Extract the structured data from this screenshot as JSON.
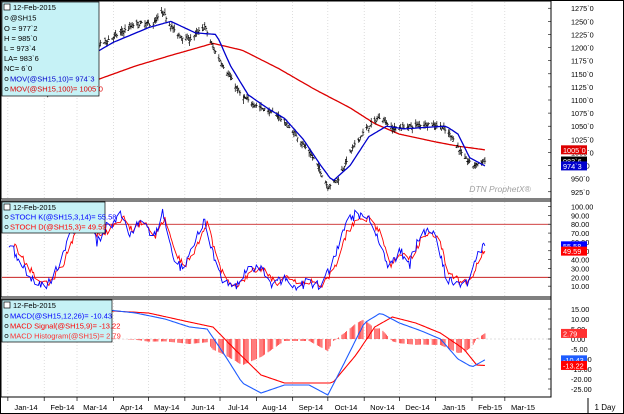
{
  "chart_data": [
    {
      "type": "ohlc",
      "panel": "price",
      "legend": {
        "date": "12-Feb-2015",
        "symbol": "@SH15",
        "open": "O = 977`2",
        "high": "H = 985`0",
        "low": "L = 973`4",
        "last": "LA= 983`6",
        "nc": "NC= 6`0",
        "ma10": "MOV(@SH15,10)= 974`3",
        "ma100": "MOV(@SH15,100)= 1005`0"
      },
      "y_ticks": [
        "1275`0",
        "1250`0",
        "1225`0",
        "1200`0",
        "1175`0",
        "1150`0",
        "1125`0",
        "1100`0",
        "1075`0",
        "1050`0",
        "1025`0",
        "1000`0",
        "975`0",
        "950`0",
        "925`0"
      ],
      "ylim": [
        915,
        1285
      ],
      "value_boxes": {
        "ma100": "1005`0",
        "last": "983`6",
        "ma10": "974`3"
      },
      "watermark": "DTN ProphetX®",
      "x_range": [
        "2013-12-27",
        "2015-03-31"
      ],
      "close_anchors": [
        [
          "2014-01-02",
          1140
        ],
        [
          "2014-01-20",
          1125
        ],
        [
          "2014-02-05",
          1112
        ],
        [
          "2014-02-20",
          1155
        ],
        [
          "2014-03-05",
          1185
        ],
        [
          "2014-03-20",
          1205
        ],
        [
          "2014-04-05",
          1225
        ],
        [
          "2014-04-20",
          1245
        ],
        [
          "2014-05-05",
          1245
        ],
        [
          "2014-05-13",
          1268
        ],
        [
          "2014-05-25",
          1225
        ],
        [
          "2014-06-05",
          1215
        ],
        [
          "2014-06-18",
          1240
        ],
        [
          "2014-06-25",
          1200
        ],
        [
          "2014-07-05",
          1160
        ],
        [
          "2014-07-20",
          1105
        ],
        [
          "2014-08-05",
          1085
        ],
        [
          "2014-08-20",
          1070
        ],
        [
          "2014-09-05",
          1030
        ],
        [
          "2014-09-20",
          985
        ],
        [
          "2014-10-01",
          935
        ],
        [
          "2014-10-10",
          950
        ],
        [
          "2014-10-20",
          1000
        ],
        [
          "2014-11-01",
          1040
        ],
        [
          "2014-11-15",
          1070
        ],
        [
          "2014-11-25",
          1045
        ],
        [
          "2014-12-10",
          1050
        ],
        [
          "2014-12-25",
          1055
        ],
        [
          "2015-01-05",
          1050
        ],
        [
          "2015-01-15",
          1030
        ],
        [
          "2015-01-25",
          990
        ],
        [
          "2015-02-02",
          975
        ],
        [
          "2015-02-12",
          983.75
        ]
      ],
      "ma10_anchors": [
        [
          "2014-01-15",
          1135
        ],
        [
          "2014-02-10",
          1115
        ],
        [
          "2014-03-01",
          1170
        ],
        [
          "2014-04-01",
          1210
        ],
        [
          "2014-05-01",
          1238
        ],
        [
          "2014-05-20",
          1250
        ],
        [
          "2014-06-10",
          1228
        ],
        [
          "2014-06-28",
          1225
        ],
        [
          "2014-07-10",
          1165
        ],
        [
          "2014-07-25",
          1110
        ],
        [
          "2014-08-10",
          1085
        ],
        [
          "2014-08-25",
          1065
        ],
        [
          "2014-09-10",
          1025
        ],
        [
          "2014-09-25",
          975
        ],
        [
          "2014-10-05",
          945
        ],
        [
          "2014-10-20",
          975
        ],
        [
          "2014-11-05",
          1030
        ],
        [
          "2014-11-20",
          1050
        ],
        [
          "2014-12-05",
          1045
        ],
        [
          "2014-12-25",
          1048
        ],
        [
          "2015-01-10",
          1050
        ],
        [
          "2015-01-20",
          1035
        ],
        [
          "2015-01-30",
          990
        ],
        [
          "2015-02-12",
          974.375
        ]
      ],
      "ma100_anchors": [
        [
          "2014-02-20",
          1118
        ],
        [
          "2014-03-20",
          1140
        ],
        [
          "2014-04-20",
          1165
        ],
        [
          "2014-05-20",
          1185
        ],
        [
          "2014-06-25",
          1208
        ],
        [
          "2014-07-20",
          1195
        ],
        [
          "2014-08-20",
          1160
        ],
        [
          "2014-09-20",
          1120
        ],
        [
          "2014-10-20",
          1085
        ],
        [
          "2014-11-10",
          1055
        ],
        [
          "2014-12-01",
          1035
        ],
        [
          "2015-01-01",
          1020
        ],
        [
          "2015-01-20",
          1012
        ],
        [
          "2015-02-12",
          1005
        ]
      ]
    },
    {
      "type": "line",
      "panel": "stochastic",
      "legend": {
        "date": "12-Feb-2015",
        "k": "STOCH K(@SH15,3,14)= 55.58",
        "d": "STOCH D(@SH15,3)= 49.59"
      },
      "y_ticks": [
        "100.00",
        "90.00",
        "80.00",
        "70.00",
        "60.00",
        "50.00",
        "40.00",
        "30.00",
        "20.00",
        "10.00"
      ],
      "ylim": [
        0,
        104
      ],
      "reference_lines": [
        80,
        20
      ],
      "value_boxes": {
        "k": "55.58",
        "d": "49.59"
      },
      "k_anchors": [
        [
          "2014-01-02",
          60
        ],
        [
          "2014-01-12",
          35
        ],
        [
          "2014-01-22",
          18
        ],
        [
          "2014-02-03",
          8
        ],
        [
          "2014-02-15",
          40
        ],
        [
          "2014-02-28",
          82
        ],
        [
          "2014-03-08",
          90
        ],
        [
          "2014-03-18",
          60
        ],
        [
          "2014-03-25",
          75
        ],
        [
          "2014-04-08",
          90
        ],
        [
          "2014-04-15",
          70
        ],
        [
          "2014-04-25",
          88
        ],
        [
          "2014-05-05",
          62
        ],
        [
          "2014-05-13",
          92
        ],
        [
          "2014-05-22",
          40
        ],
        [
          "2014-05-30",
          30
        ],
        [
          "2014-06-08",
          55
        ],
        [
          "2014-06-18",
          88
        ],
        [
          "2014-06-28",
          28
        ],
        [
          "2014-07-05",
          12
        ],
        [
          "2014-07-15",
          8
        ],
        [
          "2014-07-25",
          30
        ],
        [
          "2014-08-05",
          32
        ],
        [
          "2014-08-15",
          10
        ],
        [
          "2014-08-25",
          20
        ],
        [
          "2014-09-05",
          10
        ],
        [
          "2014-09-15",
          15
        ],
        [
          "2014-09-25",
          8
        ],
        [
          "2014-10-05",
          35
        ],
        [
          "2014-10-15",
          78
        ],
        [
          "2014-10-25",
          92
        ],
        [
          "2014-11-05",
          88
        ],
        [
          "2014-11-15",
          60
        ],
        [
          "2014-11-22",
          28
        ],
        [
          "2014-12-01",
          50
        ],
        [
          "2014-12-10",
          35
        ],
        [
          "2014-12-20",
          75
        ],
        [
          "2015-01-01",
          68
        ],
        [
          "2015-01-10",
          20
        ],
        [
          "2015-01-20",
          10
        ],
        [
          "2015-01-28",
          12
        ],
        [
          "2015-02-05",
          48
        ],
        [
          "2015-02-12",
          55.58
        ]
      ],
      "d_anchors": [
        [
          "2014-01-04",
          62
        ],
        [
          "2014-01-14",
          40
        ],
        [
          "2014-01-24",
          22
        ],
        [
          "2014-02-05",
          12
        ],
        [
          "2014-02-17",
          35
        ],
        [
          "2014-03-02",
          76
        ],
        [
          "2014-03-10",
          86
        ],
        [
          "2014-03-20",
          66
        ],
        [
          "2014-03-27",
          72
        ],
        [
          "2014-04-10",
          86
        ],
        [
          "2014-04-17",
          74
        ],
        [
          "2014-04-27",
          84
        ],
        [
          "2014-05-07",
          66
        ],
        [
          "2014-05-15",
          86
        ],
        [
          "2014-05-24",
          46
        ],
        [
          "2014-06-01",
          34
        ],
        [
          "2014-06-10",
          52
        ],
        [
          "2014-06-20",
          82
        ],
        [
          "2014-06-30",
          34
        ],
        [
          "2014-07-07",
          16
        ],
        [
          "2014-07-17",
          12
        ],
        [
          "2014-07-27",
          26
        ],
        [
          "2014-08-07",
          30
        ],
        [
          "2014-08-17",
          14
        ],
        [
          "2014-08-27",
          18
        ],
        [
          "2014-09-07",
          12
        ],
        [
          "2014-09-17",
          14
        ],
        [
          "2014-09-27",
          12
        ],
        [
          "2014-10-07",
          30
        ],
        [
          "2014-10-17",
          70
        ],
        [
          "2014-10-27",
          88
        ],
        [
          "2014-11-07",
          86
        ],
        [
          "2014-11-17",
          64
        ],
        [
          "2014-11-24",
          34
        ],
        [
          "2014-12-03",
          46
        ],
        [
          "2014-12-12",
          40
        ],
        [
          "2014-12-22",
          70
        ],
        [
          "2015-01-03",
          66
        ],
        [
          "2015-01-12",
          26
        ],
        [
          "2015-01-22",
          14
        ],
        [
          "2015-01-30",
          14
        ],
        [
          "2015-02-07",
          42
        ],
        [
          "2015-02-12",
          49.59
        ]
      ]
    },
    {
      "type": "line",
      "panel": "macd",
      "legend": {
        "date": "12-Feb-2015",
        "macd": "MACD(@SH15,12,26)= -10.43",
        "signal": "MACD Signal(@SH15,9)= -13.22",
        "hist": "MACD Histogram(@SH15)= 2.79"
      },
      "y_ticks": [
        "15.00",
        "10.00",
        "5.00",
        "0.00",
        "-5.00",
        "-10.00",
        "-15.00",
        "-20.00",
        "-25.00"
      ],
      "ylim": [
        -28,
        19
      ],
      "value_boxes": {
        "hist": "2.79",
        "macd": "-10.43",
        "signal": "-13.22"
      },
      "macd_anchors": [
        [
          "2014-01-02",
          10
        ],
        [
          "2014-01-25",
          8
        ],
        [
          "2014-02-20",
          11
        ],
        [
          "2014-03-20",
          15
        ],
        [
          "2014-04-20",
          13
        ],
        [
          "2014-05-15",
          10
        ],
        [
          "2014-06-05",
          6
        ],
        [
          "2014-06-20",
          5
        ],
        [
          "2014-07-05",
          -8
        ],
        [
          "2014-07-20",
          -22
        ],
        [
          "2014-08-05",
          -27
        ],
        [
          "2014-08-25",
          -23
        ],
        [
          "2014-09-15",
          -23
        ],
        [
          "2014-10-01",
          -28
        ],
        [
          "2014-10-15",
          -12
        ],
        [
          "2014-11-01",
          8
        ],
        [
          "2014-11-15",
          13
        ],
        [
          "2014-12-01",
          8
        ],
        [
          "2014-12-20",
          4
        ],
        [
          "2015-01-05",
          0
        ],
        [
          "2015-01-20",
          -10
        ],
        [
          "2015-02-01",
          -14
        ],
        [
          "2015-02-12",
          -10.43
        ]
      ],
      "signal_anchors": [
        [
          "2014-01-02",
          11
        ],
        [
          "2014-02-01",
          9
        ],
        [
          "2014-03-01",
          11
        ],
        [
          "2014-04-01",
          14
        ],
        [
          "2014-05-01",
          13
        ],
        [
          "2014-06-01",
          9
        ],
        [
          "2014-06-25",
          6
        ],
        [
          "2014-07-15",
          -6
        ],
        [
          "2014-08-05",
          -18
        ],
        [
          "2014-08-25",
          -22
        ],
        [
          "2014-09-15",
          -22
        ],
        [
          "2014-10-05",
          -22
        ],
        [
          "2014-10-25",
          -8
        ],
        [
          "2014-11-10",
          6
        ],
        [
          "2014-11-25",
          11
        ],
        [
          "2014-12-15",
          8
        ],
        [
          "2015-01-05",
          3
        ],
        [
          "2015-01-25",
          -5
        ],
        [
          "2015-02-05",
          -13
        ],
        [
          "2015-02-12",
          -13.22
        ]
      ]
    }
  ],
  "x_axis": {
    "ticks": [
      {
        "label": "Jan-14",
        "date": "2014-01-01"
      },
      {
        "label": "Feb-14",
        "date": "2014-02-01"
      },
      {
        "label": "Mar-14",
        "date": "2014-03-01"
      },
      {
        "label": "Apr-14",
        "date": "2014-04-01"
      },
      {
        "label": "May-14",
        "date": "2014-05-01"
      },
      {
        "label": "Jun-14",
        "date": "2014-06-01"
      },
      {
        "label": "Jul-14",
        "date": "2014-07-01"
      },
      {
        "label": "Aug-14",
        "date": "2014-08-01"
      },
      {
        "label": "Sep-14",
        "date": "2014-09-01"
      },
      {
        "label": "Oct-14",
        "date": "2014-10-01"
      },
      {
        "label": "Nov-14",
        "date": "2014-11-01"
      },
      {
        "label": "Dec-14",
        "date": "2014-12-01"
      },
      {
        "label": "Jan-15",
        "date": "2015-01-01"
      },
      {
        "label": "Feb-15",
        "date": "2015-02-01"
      },
      {
        "label": "Mar-15",
        "date": "2015-03-01"
      }
    ],
    "interval": "1 Day"
  },
  "colors": {
    "price_bars": "#000000",
    "ma10": "#0000cc",
    "ma100": "#dd0000",
    "stoch_k": "#0000ff",
    "stoch_d": "#ff0000",
    "macd": "#1e5cff",
    "signal": "#ff0000",
    "hist": "#ff3030",
    "legend_bg": "#c6f2f6",
    "ref_line": "#c00000",
    "grid": "#c8c8c8"
  }
}
